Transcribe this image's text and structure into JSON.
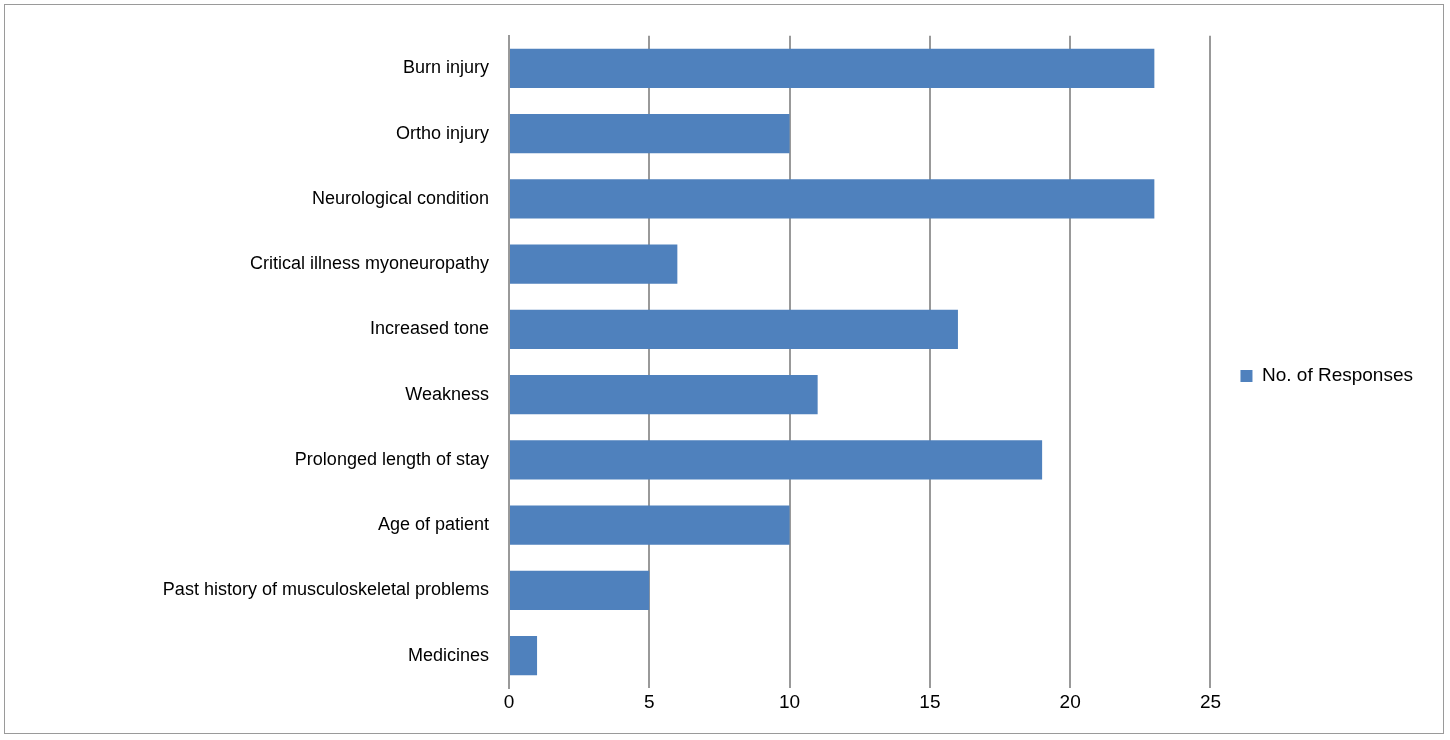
{
  "chart_data": {
    "type": "bar",
    "orientation": "horizontal",
    "categories": [
      "Burn injury",
      "Ortho injury",
      "Neurological condition",
      "Critical illness myoneuropathy",
      "Increased tone",
      "Weakness",
      "Prolonged length of stay",
      "Age of patient",
      "Past history of musculoskeletal problems",
      "Medicines"
    ],
    "series": [
      {
        "name": "No. of Responses",
        "color": "#4f81bd",
        "values": [
          23,
          10,
          23,
          6,
          16,
          11,
          19,
          10,
          5,
          1
        ]
      }
    ],
    "xlim": [
      0,
      25
    ],
    "xticks": [
      0,
      5,
      10,
      15,
      20,
      25
    ],
    "grid": "x",
    "legend": "right"
  }
}
